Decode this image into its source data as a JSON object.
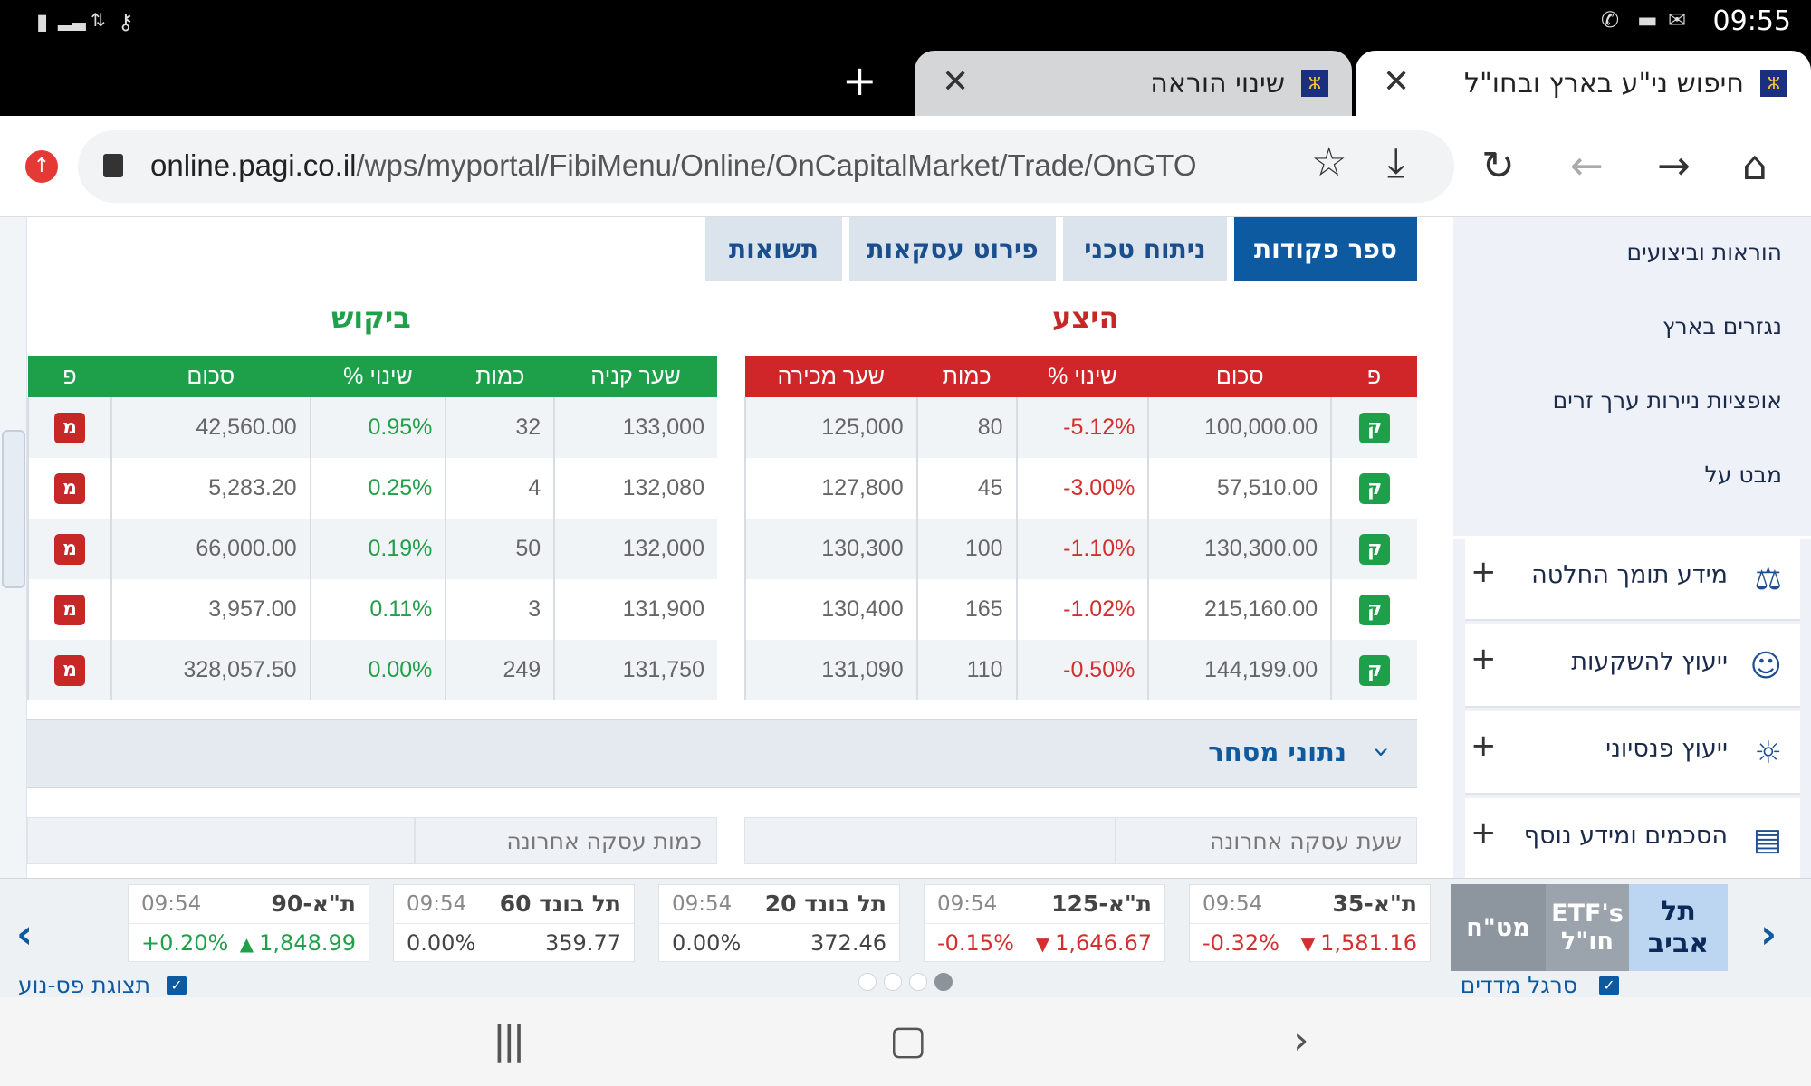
{
  "status_bar": {
    "time": "09:55",
    "left_icons": [
      "battery-charging-icon",
      "signal-icon",
      "data-arrows-icon",
      "vpn-key-icon"
    ],
    "right_icons": [
      "whatsapp-icon",
      "message-icon",
      "gmail-icon"
    ]
  },
  "browser": {
    "tabs": [
      {
        "title": "חיפוש ני\"ע בארץ ובחו\"ל",
        "active": true
      },
      {
        "title": "שינוי הוראה",
        "active": false
      }
    ],
    "favicon_text": "ⵣ",
    "close_glyph": "✕",
    "new_tab_glyph": "+",
    "url_host": "online.pagi.co.il",
    "url_path": "/wps/myportal/FibiMenu/Online/OnCapitalMarket/Trade/OnGTO",
    "icons": [
      "update-icon",
      "lock-icon",
      "bookmark-star-icon",
      "download-icon",
      "reload-icon",
      "back-icon",
      "forward-icon",
      "home-icon"
    ],
    "glyphs": {
      "star": "☆",
      "download": "⤓",
      "reload": "↻",
      "back": "←",
      "forward": "→",
      "home": "⌂"
    }
  },
  "sidebar": {
    "links": [
      "הוראות וביצועים",
      "נגזרים בארץ",
      "אופציות ניירות ערך זרים",
      "מבט על"
    ],
    "accordion": [
      {
        "label": "מידע תומך החלטה",
        "icon": "scales-icon",
        "glyph": "⚖"
      },
      {
        "label": "ייעוץ להשקעות",
        "icon": "investor-icon",
        "glyph": "☺"
      },
      {
        "label": "ייעוץ פנסיוני",
        "icon": "pension-icon",
        "glyph": "☼"
      },
      {
        "label": "הסכמים ומידע נוסף",
        "icon": "document-icon",
        "glyph": "▤"
      }
    ],
    "plus": "+"
  },
  "page_tabs": [
    {
      "label": "ספר פקודות",
      "active": true
    },
    {
      "label": "ניתוח טכני",
      "active": false
    },
    {
      "label": "פירוט עסקאות",
      "active": false
    },
    {
      "label": "תשואות",
      "active": false
    }
  ],
  "order_book": {
    "supply": {
      "title": "היצע",
      "headers": {
        "badge": "פ",
        "amount": "סכום",
        "change": "% שינוי",
        "qty": "כמות",
        "price": "שער מכירה"
      },
      "rows": [
        {
          "badge": "ק",
          "amount": "100,000.00",
          "change": "-5.12%",
          "qty": "80",
          "price": "125,000"
        },
        {
          "badge": "ק",
          "amount": "57,510.00",
          "change": "-3.00%",
          "qty": "45",
          "price": "127,800"
        },
        {
          "badge": "ק",
          "amount": "130,300.00",
          "change": "-1.10%",
          "qty": "100",
          "price": "130,300"
        },
        {
          "badge": "ק",
          "amount": "215,160.00",
          "change": "-1.02%",
          "qty": "165",
          "price": "130,400"
        },
        {
          "badge": "ק",
          "amount": "144,199.00",
          "change": "-0.50%",
          "qty": "110",
          "price": "131,090"
        }
      ]
    },
    "demand": {
      "title": "ביקוש",
      "headers": {
        "price": "שער קניה",
        "qty": "כמות",
        "change": "% שינוי",
        "amount": "סכום",
        "badge": "פ"
      },
      "rows": [
        {
          "price": "133,000",
          "qty": "32",
          "change": "0.95%",
          "amount": "42,560.00",
          "badge": "מ"
        },
        {
          "price": "132,080",
          "qty": "4",
          "change": "0.25%",
          "amount": "5,283.20",
          "badge": "מ"
        },
        {
          "price": "132,000",
          "qty": "50",
          "change": "0.19%",
          "amount": "66,000.00",
          "badge": "מ"
        },
        {
          "price": "131,900",
          "qty": "3",
          "change": "0.11%",
          "amount": "3,957.00",
          "badge": "מ"
        },
        {
          "price": "131,750",
          "qty": "249",
          "change": "0.00%",
          "amount": "328,057.50",
          "badge": "מ"
        }
      ]
    }
  },
  "trade_data": {
    "title": "נתוני מסחר",
    "chevron": "›",
    "fields": [
      "שעת עסקה אחרונה",
      "כמות עסקה אחרונה"
    ]
  },
  "ticker": {
    "markets": [
      "תל אביב",
      "ETF's חו\"ל",
      "מט\"ח"
    ],
    "indices": [
      {
        "name": "ת\"א-35",
        "time": "09:54",
        "value": "1,581.16",
        "change": "-0.32%",
        "dir": "down",
        "arrow": "▼"
      },
      {
        "name": "ת\"א-125",
        "time": "09:54",
        "value": "1,646.67",
        "change": "-0.15%",
        "dir": "down",
        "arrow": "▼"
      },
      {
        "name": "תל בונד 20",
        "time": "09:54",
        "value": "372.46",
        "change": "0.00%",
        "dir": "flat",
        "arrow": ""
      },
      {
        "name": "תל בונד 60",
        "time": "09:54",
        "value": "359.77",
        "change": "0.00%",
        "dir": "flat",
        "arrow": ""
      },
      {
        "name": "ת\"א-90",
        "time": "09:54",
        "value": "1,848.99",
        "change": "+0.20%",
        "dir": "up",
        "arrow": "▲"
      }
    ],
    "bar_label": "סרגל מדדים",
    "tape_label": "תצוגת פס-נוע",
    "check": "✓",
    "prev_glyph": "‹",
    "next_glyph": "›",
    "pages": 4,
    "active_page": 0
  },
  "navbar": {
    "recent": "|||",
    "home": "▢",
    "back": "‹"
  },
  "colors": {
    "primary": "#0e5aa0",
    "supply": "#d32f2f",
    "demand": "#21a049",
    "supply_header": "#d0262a",
    "demand_header": "#1ea04a"
  }
}
